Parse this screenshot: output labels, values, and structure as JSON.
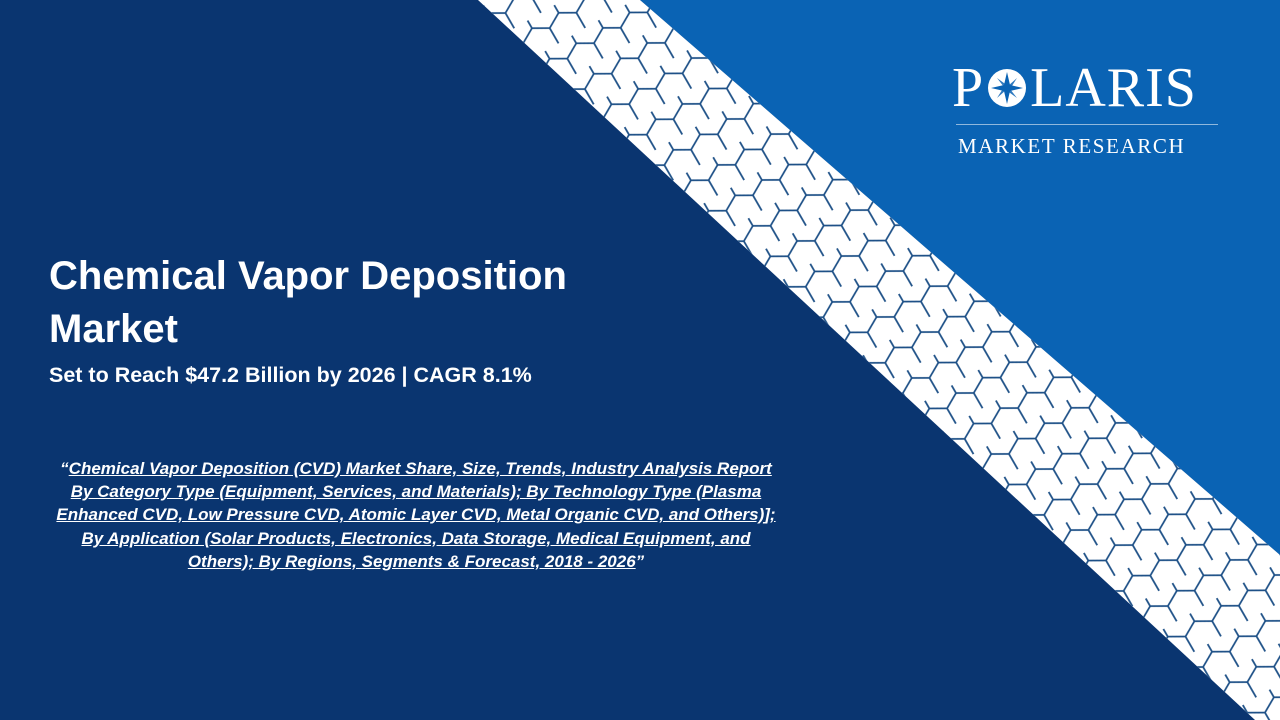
{
  "colors": {
    "navy": "#0a3570",
    "blue": "#0a63b4",
    "band": "#ffffff",
    "pattern": "#1c4f86",
    "text": "#ffffff"
  },
  "logo": {
    "letters_before": "P",
    "letters_after": "LARIS",
    "sub": "MARKET RESEARCH",
    "icon": "compass-star-icon"
  },
  "title": "Chemical Vapor Deposition Market",
  "subtitle": "Set to Reach $47.2 Billion by 2026 | CAGR 8.1%",
  "report": {
    "open_quote": "“",
    "link_text": "Chemical Vapor Deposition (CVD) Market Share, Size, Trends, Industry Analysis Report By Category Type (Equipment, Services, and Materials); By Technology Type (Plasma Enhanced CVD, Low Pressure CVD, Atomic Layer CVD, Metal Organic CVD, and Others)]; By Application (Solar Products, Electronics, Data Storage, Medical Equipment, and Others); By Regions, Segments & Forecast, 2018 - 2026",
    "close_quote": "”"
  }
}
